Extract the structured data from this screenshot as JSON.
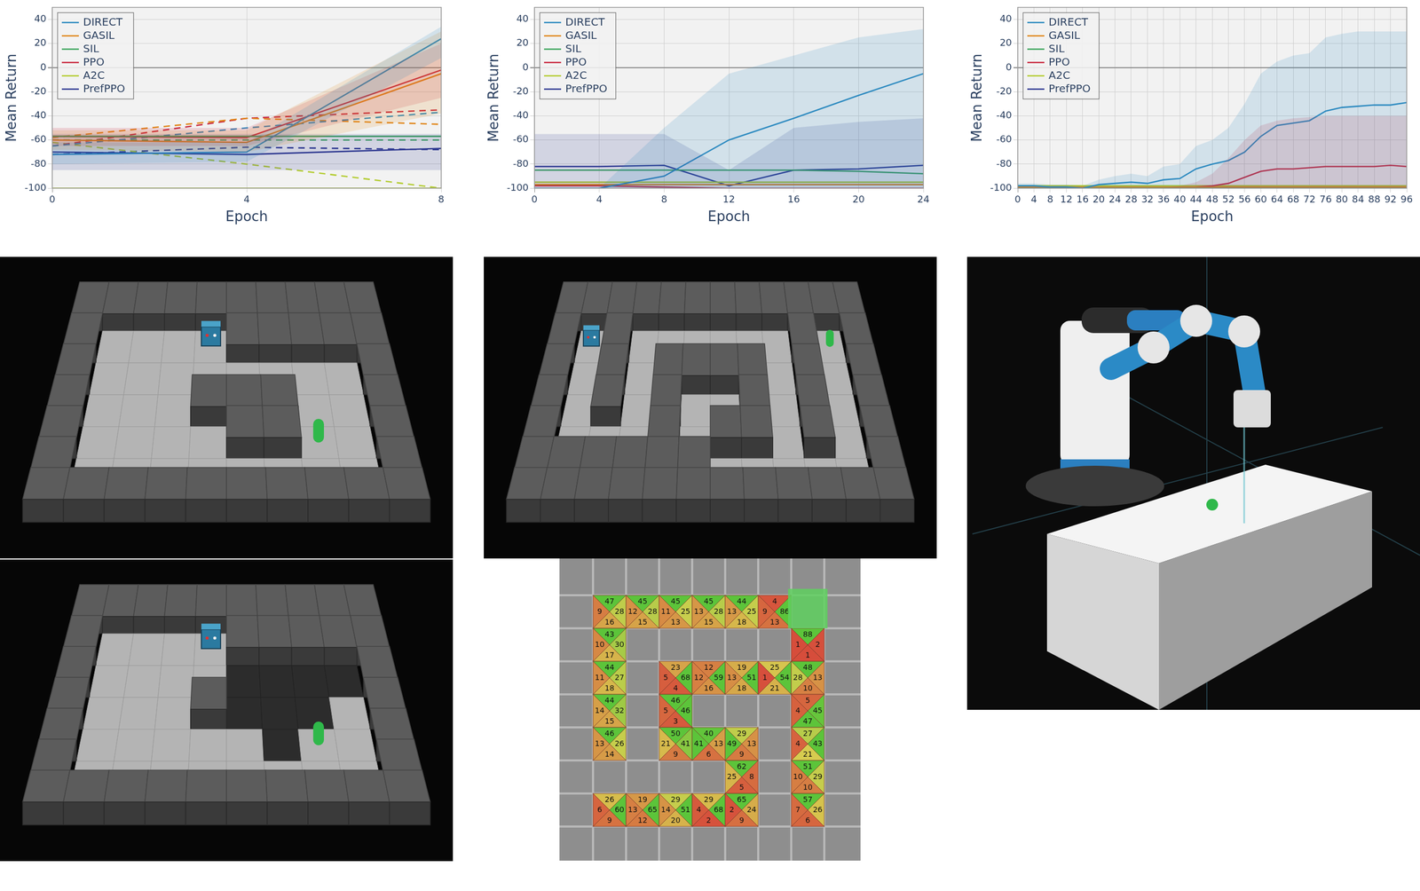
{
  "chart_data": [
    {
      "type": "line",
      "x_label": "Epoch",
      "y_label": "Mean Return",
      "grid": true,
      "legend": "top-left",
      "x": [
        0,
        4,
        8
      ],
      "xlim": [
        0,
        8
      ],
      "xticks": [
        0,
        4,
        8
      ],
      "ylim": [
        -100,
        50
      ],
      "yticks": [
        -100,
        -80,
        -60,
        -40,
        -20,
        0,
        20,
        40
      ],
      "series": [
        {
          "name": "DIRECT",
          "color": "#2e8bc0",
          "line_style": "solid",
          "values": [
            -72,
            -70,
            24
          ],
          "lower": [
            -80,
            -78,
            8
          ],
          "upper": [
            -62,
            -62,
            34
          ]
        },
        {
          "name": "GASIL",
          "color": "#e0861a",
          "line_style": "solid",
          "values": [
            -60,
            -62,
            -5
          ],
          "lower": [
            -68,
            -70,
            -38
          ],
          "upper": [
            -52,
            -52,
            30
          ]
        },
        {
          "name": "SIL",
          "color": "#3ca55c",
          "line_style": "solid",
          "values": [
            -57,
            -57,
            -57
          ]
        },
        {
          "name": "PPO",
          "color": "#c9283e",
          "line_style": "solid",
          "values": [
            -57,
            -58,
            -2
          ],
          "lower": [
            -65,
            -65,
            -25
          ],
          "upper": [
            -50,
            -50,
            20
          ]
        },
        {
          "name": "A2C",
          "color": "#b3cc2f",
          "line_style": "solid",
          "values": [
            -100,
            -100,
            -100
          ]
        },
        {
          "name": "PrefPPO",
          "color": "#2d3791",
          "line_style": "solid",
          "values": [
            -70,
            -72,
            -67
          ],
          "lower": [
            -85,
            -85,
            -85
          ],
          "upper": [
            -55,
            -55,
            -55
          ]
        },
        {
          "name": "DIRECT",
          "color": "#2e8bc0",
          "line_style": "dashed",
          "values": [
            -65,
            -50,
            -37
          ]
        },
        {
          "name": "GASIL",
          "color": "#e0861a",
          "line_style": "dashed",
          "values": [
            -58,
            -42,
            -47
          ]
        },
        {
          "name": "SIL",
          "color": "#3ca55c",
          "line_style": "dashed",
          "values": [
            -60,
            -60,
            -60
          ]
        },
        {
          "name": "PPO",
          "color": "#c9283e",
          "line_style": "dashed",
          "values": [
            -65,
            -42,
            -35
          ]
        },
        {
          "name": "A2C",
          "color": "#b3cc2f",
          "line_style": "dashed",
          "values": [
            -62,
            -80,
            -100
          ]
        },
        {
          "name": "PrefPPO",
          "color": "#2d3791",
          "line_style": "dashed",
          "values": [
            -72,
            -66,
            -68
          ]
        }
      ]
    },
    {
      "type": "line",
      "x_label": "Epoch",
      "y_label": "Mean Return",
      "grid": true,
      "legend": "top-left",
      "x": [
        0,
        4,
        8,
        12,
        16,
        20,
        24
      ],
      "xlim": [
        0,
        24
      ],
      "xticks": [
        0,
        4,
        8,
        12,
        16,
        20,
        24
      ],
      "ylim": [
        -100,
        50
      ],
      "yticks": [
        -100,
        -80,
        -60,
        -40,
        -20,
        0,
        20,
        40
      ],
      "series": [
        {
          "name": "DIRECT",
          "color": "#2e8bc0",
          "line_style": "solid",
          "values": [
            -100,
            -100,
            -90,
            -60,
            -42,
            -23,
            -5
          ],
          "lower": [
            -100,
            -100,
            -100,
            -100,
            -100,
            -100,
            -100
          ],
          "upper": [
            -100,
            -100,
            -50,
            -5,
            10,
            25,
            32
          ]
        },
        {
          "name": "GASIL",
          "color": "#e0861a",
          "line_style": "solid",
          "values": [
            -97,
            -97,
            -97,
            -97,
            -97,
            -97,
            -97
          ]
        },
        {
          "name": "SIL",
          "color": "#3ca55c",
          "line_style": "solid",
          "values": [
            -85,
            -85,
            -85,
            -85,
            -85,
            -86,
            -88
          ]
        },
        {
          "name": "PPO",
          "color": "#c9283e",
          "line_style": "solid",
          "values": [
            -98,
            -98,
            -99,
            -100,
            -100,
            -100,
            -100
          ]
        },
        {
          "name": "A2C",
          "color": "#b3cc2f",
          "line_style": "solid",
          "values": [
            -95,
            -95,
            -95,
            -95,
            -95,
            -95,
            -95
          ]
        },
        {
          "name": "PrefPPO",
          "color": "#2d3791",
          "line_style": "solid",
          "values": [
            -82,
            -82,
            -81,
            -98,
            -85,
            -84,
            -81
          ],
          "lower": [
            -100,
            -100,
            -100,
            -100,
            -100,
            -100,
            -100
          ],
          "upper": [
            -55,
            -55,
            -55,
            -85,
            -50,
            -45,
            -42
          ]
        }
      ]
    },
    {
      "type": "line",
      "x_label": "Epoch",
      "y_label": "Mean Return",
      "grid": true,
      "legend": "top-left",
      "x": [
        0,
        4,
        8,
        12,
        16,
        20,
        24,
        28,
        32,
        36,
        40,
        44,
        48,
        52,
        56,
        60,
        64,
        68,
        72,
        76,
        80,
        84,
        88,
        92,
        96
      ],
      "xlim": [
        0,
        96
      ],
      "xticks": [
        0,
        4,
        8,
        12,
        16,
        20,
        24,
        28,
        32,
        36,
        40,
        44,
        48,
        52,
        56,
        60,
        64,
        68,
        72,
        76,
        80,
        84,
        88,
        92,
        96
      ],
      "ylim": [
        -100,
        50
      ],
      "yticks": [
        -100,
        -80,
        -60,
        -40,
        -20,
        0,
        20,
        40
      ],
      "series": [
        {
          "name": "DIRECT",
          "color": "#2e8bc0",
          "line_style": "solid",
          "values": [
            -98,
            -98,
            -99,
            -99,
            -100,
            -97,
            -96,
            -95,
            -96,
            -93,
            -92,
            -84,
            -80,
            -77,
            -70,
            -57,
            -48,
            -46,
            -44,
            -36,
            -33,
            -32,
            -31,
            -31,
            -29
          ],
          "lower": [
            -100,
            -100,
            -100,
            -100,
            -100,
            -100,
            -100,
            -100,
            -100,
            -100,
            -100,
            -100,
            -100,
            -100,
            -100,
            -100,
            -100,
            -100,
            -100,
            -100,
            -100,
            -100,
            -100,
            -100,
            -100
          ],
          "upper": [
            -96,
            -96,
            -97,
            -97,
            -98,
            -93,
            -90,
            -88,
            -90,
            -82,
            -80,
            -65,
            -60,
            -50,
            -30,
            -5,
            5,
            10,
            12,
            25,
            28,
            30,
            30,
            30,
            30
          ]
        },
        {
          "name": "GASIL",
          "color": "#e0861a",
          "line_style": "solid",
          "values": [
            -99,
            -99,
            -99,
            -99,
            -99,
            -99,
            -99,
            -99,
            -99,
            -99,
            -99,
            -99,
            -99,
            -99,
            -99,
            -99,
            -99,
            -99,
            -99,
            -99,
            -99,
            -99,
            -99,
            -99,
            -99
          ]
        },
        {
          "name": "SIL",
          "color": "#3ca55c",
          "line_style": "solid",
          "values": [
            -100,
            -100,
            -100,
            -100,
            -100,
            -100,
            -100,
            -100,
            -100,
            -100,
            -100,
            -100,
            -100,
            -100,
            -100,
            -100,
            -100,
            -100,
            -100,
            -100,
            -100,
            -100,
            -100,
            -100,
            -100
          ]
        },
        {
          "name": "PPO",
          "color": "#c9283e",
          "line_style": "solid",
          "values": [
            -99,
            -99,
            -99,
            -99,
            -100,
            -100,
            -100,
            -100,
            -100,
            -100,
            -100,
            -99,
            -98,
            -96,
            -91,
            -86,
            -84,
            -84,
            -83,
            -82,
            -82,
            -82,
            -82,
            -81,
            -82
          ],
          "lower": [
            -100,
            -100,
            -100,
            -100,
            -100,
            -100,
            -100,
            -100,
            -100,
            -100,
            -100,
            -100,
            -100,
            -100,
            -100,
            -100,
            -100,
            -100,
            -100,
            -100,
            -100,
            -100,
            -100,
            -100,
            -100
          ],
          "upper": [
            -99,
            -99,
            -99,
            -99,
            -100,
            -100,
            -100,
            -100,
            -100,
            -100,
            -98,
            -95,
            -88,
            -75,
            -60,
            -48,
            -44,
            -42,
            -41,
            -40,
            -40,
            -40,
            -40,
            -40,
            -40
          ]
        },
        {
          "name": "A2C",
          "color": "#b3cc2f",
          "line_style": "solid",
          "values": [
            -98,
            -98,
            -98,
            -98,
            -98,
            -98,
            -98,
            -98,
            -98,
            -98,
            -98,
            -98,
            -98,
            -98,
            -98,
            -98,
            -98,
            -98,
            -98,
            -98,
            -98,
            -98,
            -98,
            -98,
            -98
          ]
        },
        {
          "name": "PrefPPO",
          "color": "#2d3791",
          "line_style": "solid",
          "values": [
            -100,
            -100,
            -100,
            -100,
            -100,
            -100,
            -100,
            -100,
            -100,
            -100,
            -100,
            -100,
            -100,
            -100,
            -100,
            -100,
            -100,
            -100,
            -100,
            -100,
            -100,
            -100,
            -100,
            -100,
            -100
          ]
        }
      ]
    }
  ],
  "q_value_grid": {
    "cells": [
      [
        [
          47,
          9,
          28,
          16
        ],
        [
          45,
          12,
          28,
          15
        ],
        [
          45,
          11,
          25,
          13
        ],
        [
          45,
          13,
          28,
          15
        ],
        [
          44,
          13,
          25,
          18
        ],
        [
          4,
          9,
          86,
          13
        ],
        null
      ],
      [
        [
          43,
          10,
          30,
          17
        ],
        null,
        null,
        null,
        null,
        null,
        [
          88,
          1,
          2,
          1
        ]
      ],
      [
        [
          44,
          11,
          27,
          18
        ],
        null,
        [
          23,
          5,
          68,
          4
        ],
        [
          12,
          12,
          59,
          16
        ],
        [
          19,
          13,
          51,
          18
        ],
        [
          25,
          1,
          54,
          21
        ],
        [
          48,
          28,
          13,
          10
        ]
      ],
      [
        [
          44,
          14,
          32,
          15
        ],
        null,
        [
          46,
          5,
          46,
          3
        ],
        null,
        null,
        null,
        [
          5,
          4,
          45,
          47
        ]
      ],
      [
        [
          46,
          13,
          26,
          14
        ],
        null,
        [
          50,
          21,
          41,
          9
        ],
        [
          40,
          41,
          13,
          6
        ],
        [
          29,
          49,
          13,
          9
        ],
        null,
        [
          27,
          4,
          43,
          21
        ]
      ],
      [
        null,
        null,
        null,
        null,
        [
          62,
          25,
          8,
          5
        ],
        null,
        [
          51,
          10,
          29,
          10
        ]
      ],
      [
        [
          26,
          6,
          60,
          9
        ],
        [
          19,
          13,
          65,
          12
        ],
        [
          29,
          14,
          51,
          20
        ],
        [
          29,
          4,
          68,
          2
        ],
        [
          65,
          2,
          24,
          9
        ],
        null,
        [
          57,
          7,
          26,
          6
        ]
      ]
    ]
  }
}
